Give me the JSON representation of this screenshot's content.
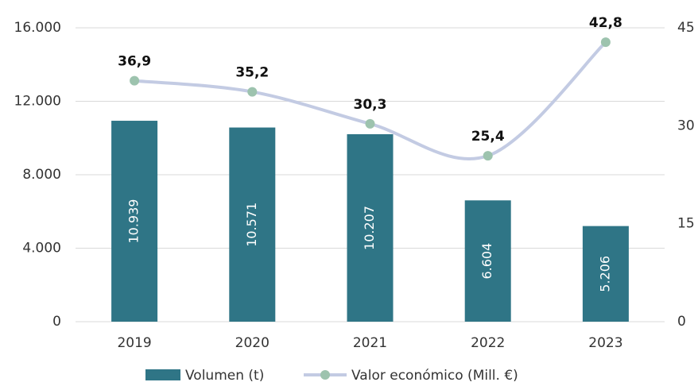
{
  "chart_data": {
    "type": "bar+line",
    "categories": [
      "2019",
      "2020",
      "2021",
      "2022",
      "2023"
    ],
    "series": [
      {
        "name": "Volumen (t)",
        "color": "#2f7586",
        "values": [
          10939,
          10571,
          10207,
          6604,
          5206
        ],
        "value_labels": [
          "10.939",
          "10.571",
          "10.207",
          "6.604",
          "5.206"
        ]
      },
      {
        "name": "Valor económico (Mill. €)",
        "color": "#c3cbe3",
        "marker_color": "#9dc3ae",
        "axis": "y2",
        "values": [
          36.9,
          35.2,
          30.3,
          25.4,
          42.8
        ],
        "value_labels": [
          "36,9",
          "35,2",
          "30,3",
          "25,4",
          "42,8"
        ]
      }
    ],
    "ylim": [
      0,
      16000
    ],
    "yticks": [
      0,
      {
        "value": 4000,
        "label": "4.000"
      },
      {
        "value": 8000,
        "label": "8.000"
      },
      {
        "value": 12000,
        "label": "12.000"
      },
      {
        "value": 16000,
        "label": "16.000"
      }
    ],
    "y2lim": [
      0,
      45
    ],
    "y2ticks": [
      0,
      15,
      30,
      45
    ],
    "grid": true,
    "legend": "bottom"
  }
}
